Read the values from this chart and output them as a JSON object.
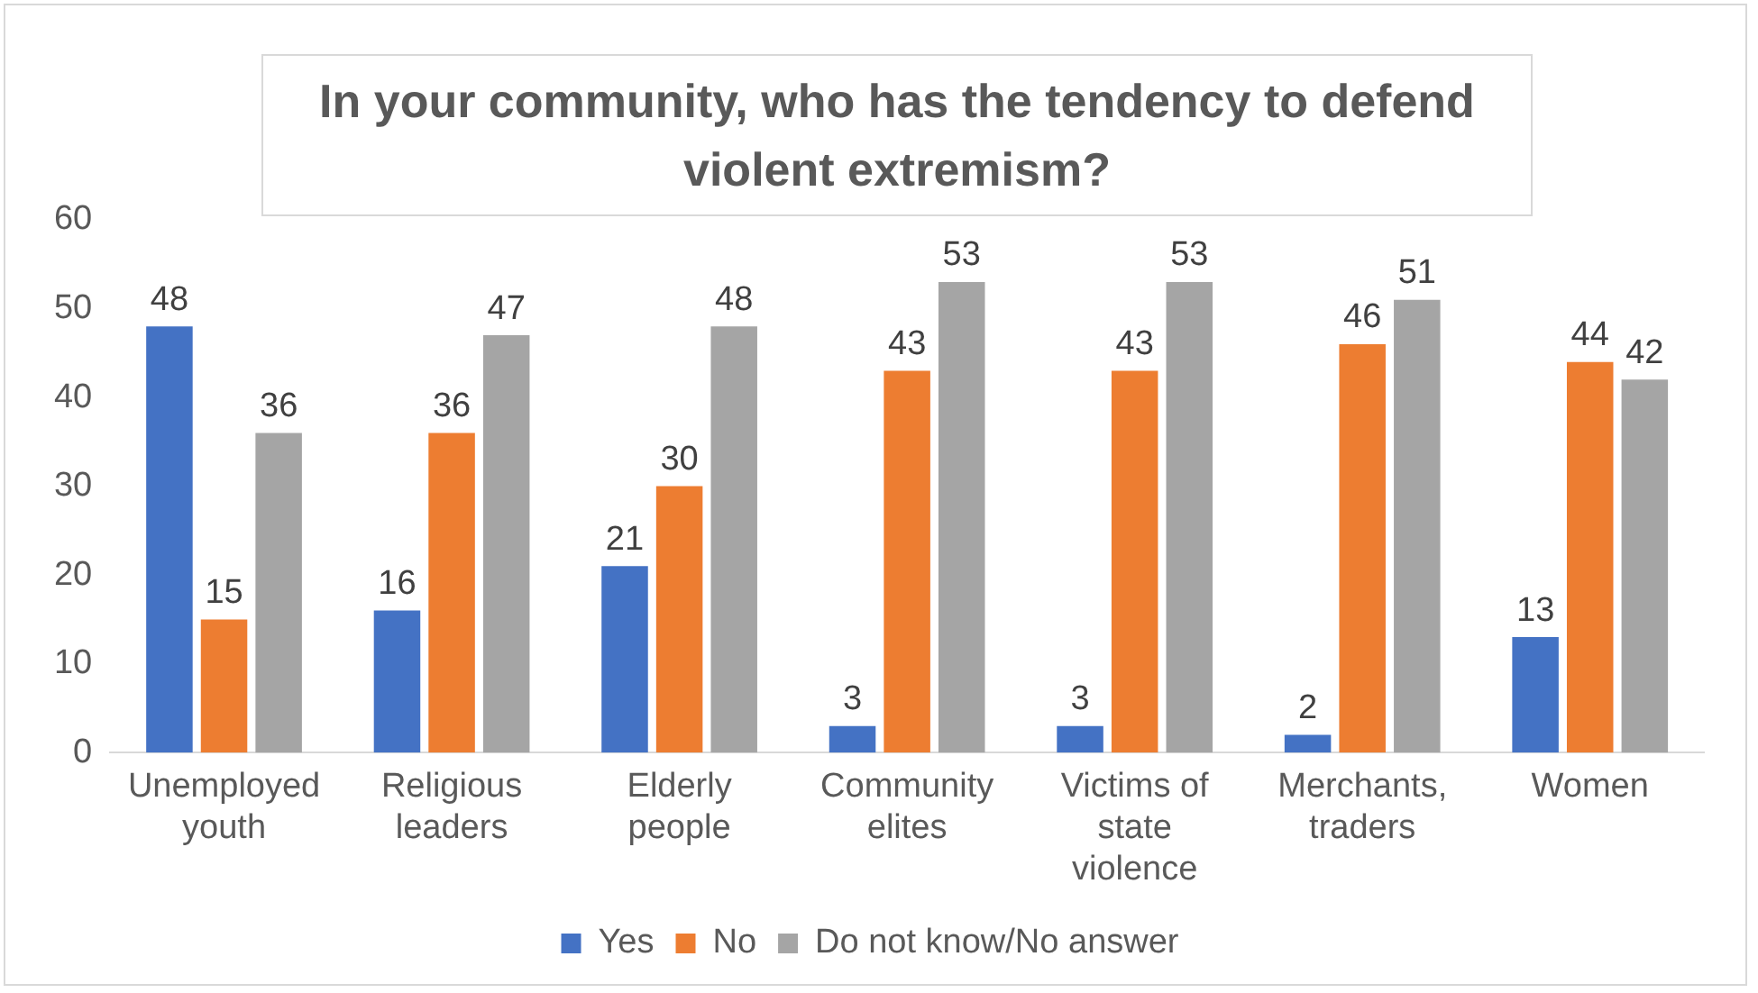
{
  "chart_data": {
    "type": "bar",
    "title": "In your community, who has the tendency to defend violent extremism?",
    "categories": [
      "Unemployed youth",
      "Religious leaders",
      "Elderly people",
      "Community elites",
      "Victims of state violence",
      "Merchants, traders",
      "Women"
    ],
    "series": [
      {
        "name": "Yes",
        "color": "#4472c4",
        "values": [
          48,
          16,
          21,
          3,
          3,
          2,
          13
        ]
      },
      {
        "name": "No",
        "color": "#ed7d31",
        "values": [
          15,
          36,
          30,
          43,
          43,
          46,
          44
        ]
      },
      {
        "name": "Do not know/No answer",
        "color": "#a5a5a5",
        "values": [
          36,
          47,
          48,
          53,
          53,
          51,
          42
        ]
      }
    ],
    "ylim": [
      0,
      60
    ],
    "yticks": [
      0,
      10,
      20,
      30,
      40,
      50,
      60
    ],
    "grid": false,
    "legend": "bottom",
    "data_labels": true
  }
}
